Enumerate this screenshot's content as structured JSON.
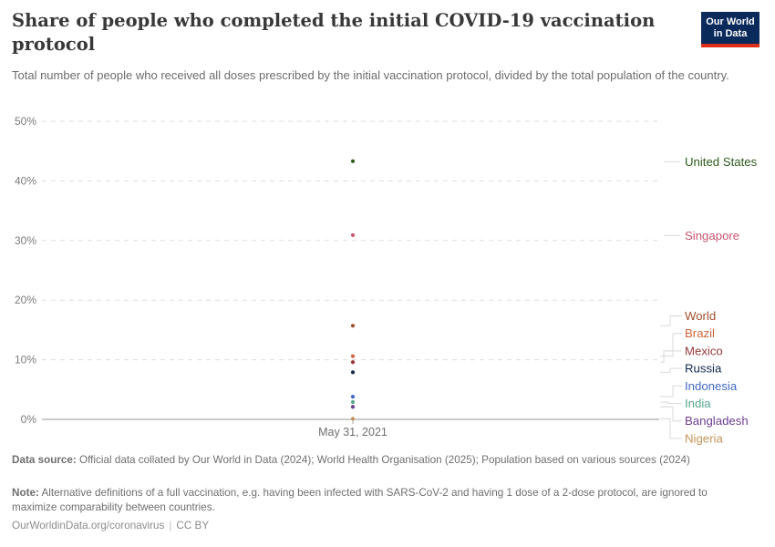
{
  "header": {
    "title": "Share of people who completed the initial COVID-19 vaccination protocol",
    "subtitle": "Total number of people who received all doses prescribed by the initial vaccination protocol, divided by the total population of the country.",
    "logo": {
      "line1": "Our World",
      "line2": "in Data"
    }
  },
  "chart_data": {
    "type": "scatter",
    "x": "May 31, 2021",
    "x_tick_label": "May 31, 2021",
    "ylim": [
      0,
      50
    ],
    "yticks": [
      0,
      10,
      20,
      30,
      40,
      50
    ],
    "ytick_suffix": "%",
    "grid": "horizontal-dashed",
    "legend_position": "right-entity-labels",
    "series": [
      {
        "name": "United States",
        "value": 43.3,
        "color": "#2E5A1C"
      },
      {
        "name": "Singapore",
        "value": 30.9,
        "color": "#C9566E"
      },
      {
        "name": "World",
        "value": 15.7,
        "color": "#9E4F2C"
      },
      {
        "name": "Brazil",
        "value": 10.6,
        "color": "#D2633C"
      },
      {
        "name": "Mexico",
        "value": 9.6,
        "color": "#983739"
      },
      {
        "name": "Russia",
        "value": 7.9,
        "color": "#112B4F"
      },
      {
        "name": "Indonesia",
        "value": 3.8,
        "color": "#4269C5"
      },
      {
        "name": "India",
        "value": 2.9,
        "color": "#58A88C"
      },
      {
        "name": "Bangladesh",
        "value": 2.1,
        "color": "#6D3E91"
      },
      {
        "name": "Nigeria",
        "value": 0.1,
        "color": "#C5945A"
      }
    ]
  },
  "footer": {
    "datasource_label": "Data source:",
    "datasource_text": " Official data collated by Our World in Data (2024); World Health Organisation (2025); Population based on various sources (2024)",
    "note_label": "Note:",
    "note_text": " Alternative definitions of a full vaccination, e.g. having been infected with SARS-CoV-2 and having 1 dose of a 2-dose protocol, are ignored to maximize comparability between countries.",
    "license": {
      "url_text": "OurWorldinData.org/coronavirus",
      "divider": "|",
      "license_text": "CC BY"
    }
  },
  "colors": {
    "gridline": "#DDDDDD",
    "axis": "#ABABAB",
    "connector": "#D9D9D9",
    "ytick_text": "#7C7C7C",
    "xtick_text": "#6E6E6E",
    "logo_bg": "#0A2A5C",
    "logo_stripe": "#DC3018"
  }
}
